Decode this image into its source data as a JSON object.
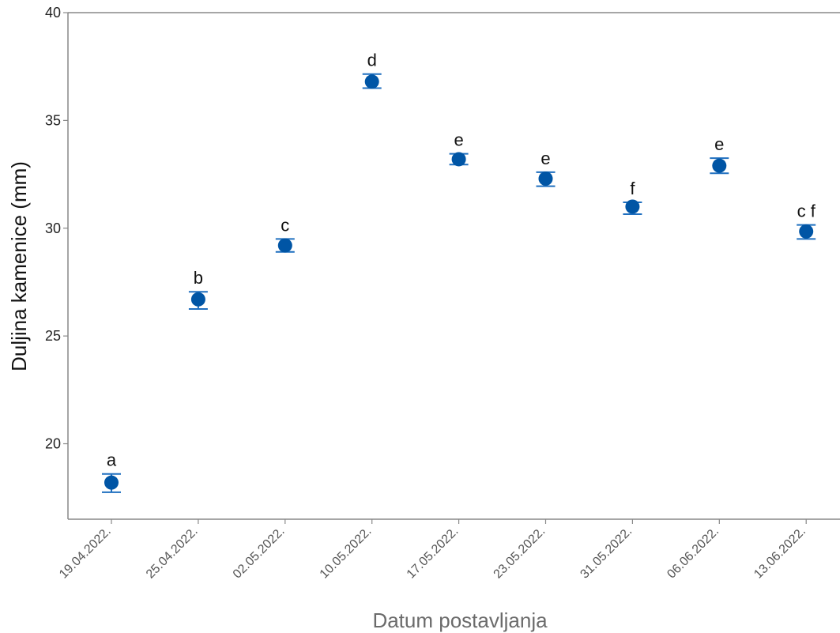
{
  "chart_data": {
    "type": "scatter",
    "title": "",
    "xlabel": "Datum postavljanja",
    "ylabel": "Duljina kamenice (mm)",
    "ylim": [
      16.5,
      40
    ],
    "yticks": [
      20,
      25,
      30,
      35,
      40
    ],
    "grid": false,
    "colors": {
      "marker": "#0055a5",
      "errorbar": "#1f6fbf",
      "axis": "#888888"
    },
    "categories": [
      "19.04.2022.",
      "25.04.2022.",
      "02.05.2022.",
      "10.05.2022.",
      "17.05.2022.",
      "23.05.2022.",
      "31.05.2022.",
      "06.06.2022.",
      "13.06.2022."
    ],
    "values": [
      18.2,
      26.7,
      29.2,
      36.8,
      33.2,
      32.3,
      31.0,
      32.9,
      29.85
    ],
    "error_low": [
      17.75,
      26.25,
      28.9,
      36.5,
      32.95,
      31.95,
      30.65,
      32.55,
      29.5
    ],
    "error_high": [
      18.6,
      27.05,
      29.5,
      37.15,
      33.45,
      32.6,
      31.2,
      33.25,
      30.15
    ],
    "group_labels": [
      "a",
      "b",
      "c",
      "d",
      "e",
      "e",
      "f",
      "e",
      "c f"
    ]
  }
}
